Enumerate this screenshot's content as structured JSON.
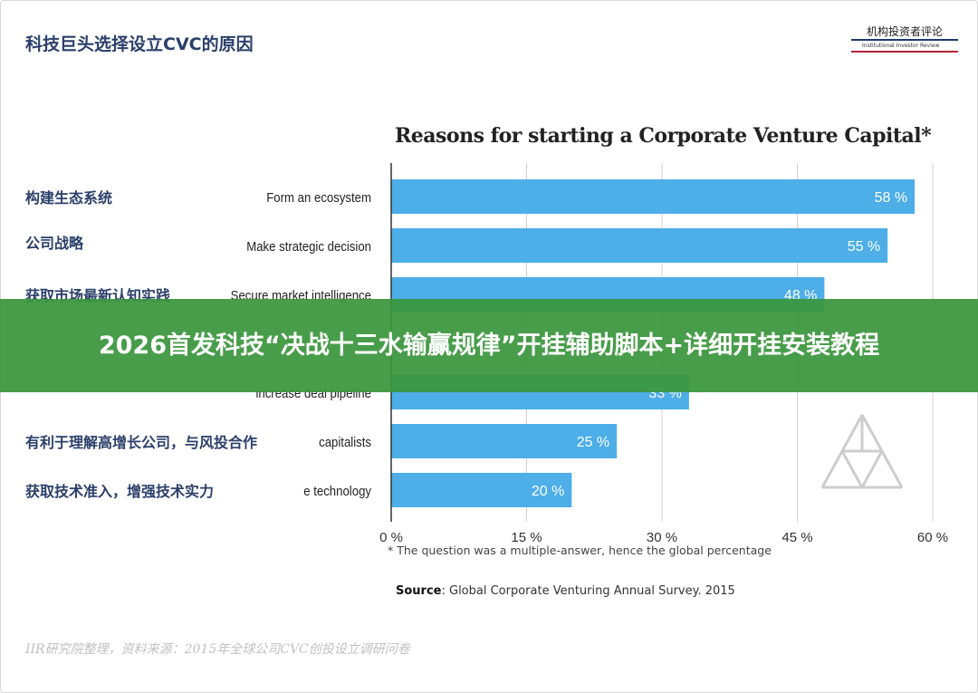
{
  "page": {
    "title": "科技巨头选择设立CVC的原因",
    "logo": {
      "name": "机构投资者评论",
      "subtitle": "Institutional Investor Review"
    },
    "credit": "IIR研究院整理，资料来源：2015年全球公司CVC创投设立调研问卷",
    "banner": "2026首发科技“决战十三水输赢规律”开挂辅助脚本+详细开挂安装教程"
  },
  "cn_labels": [
    "构建生态系统",
    "公司战略",
    "获取市场最新认知实践",
    "",
    "",
    "有利于理解高增长公司，与风投合作",
    "获取技术准入，增强技术实力"
  ],
  "chart_data": {
    "type": "bar",
    "orientation": "horizontal",
    "title": "Reasons for starting a Corporate Venture Capital*",
    "categories": [
      "Form an ecosystem",
      "Make strategic decision",
      "Secure market intelligence",
      "",
      "increase deal pipeline",
      "capitalists",
      "e technology"
    ],
    "values": [
      58,
      55,
      48,
      null,
      33,
      25,
      20
    ],
    "value_labels": [
      "58 %",
      "55 %",
      "48 %",
      "",
      "33 %",
      "25 %",
      "20 %"
    ],
    "x_ticks": [
      0,
      15,
      30,
      45,
      60
    ],
    "x_tick_labels": [
      "0 %",
      "15 %",
      "30 %",
      "45 %",
      "60 %"
    ],
    "xlim": [
      0,
      60
    ],
    "grid": true,
    "bar_color": "#4daee8",
    "footnote": "* The question was a multiple-answer, hence the global percentage",
    "source_label": "Source",
    "source_text": ": Global Corporate Venturing Annual Survey. 2015"
  },
  "colors": {
    "title": "#2a3f6a",
    "banner": "#3a963c",
    "logo_rule": "#b5243a"
  }
}
